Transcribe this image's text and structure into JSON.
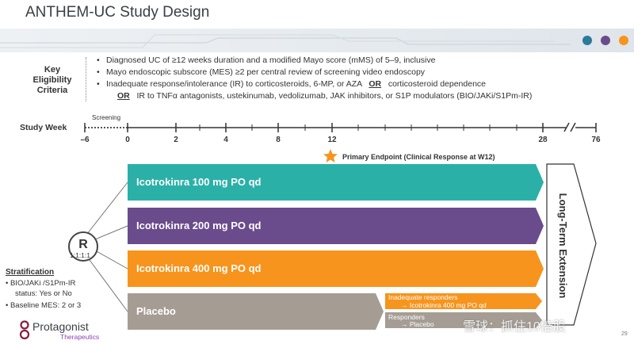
{
  "title": "ANTHEM-UC Study Design",
  "colors": {
    "teal": "#2bb0a8",
    "purple": "#6a4c8c",
    "orange": "#f7941d",
    "gray": "#a59d94",
    "dot_teal": "#2b7a9b",
    "dot_purple": "#6a4c8c",
    "dot_orange": "#f7941d"
  },
  "key_criteria": {
    "label_lines": [
      "Key",
      "Eligibility",
      "Criteria"
    ],
    "items": [
      {
        "bullet": "•",
        "text": "Diagnosed UC of ≥12 weeks duration and a modified Mayo score (mMS) of 5–9, inclusive"
      },
      {
        "bullet": "•",
        "text": "Mayo endoscopic subscore (MES) ≥2 per central review of screening video endoscopy"
      },
      {
        "bullet": "•",
        "text": "Inadequate response/intolerance (IR) to corticosteroids, 6-MP, or AZA",
        "or": "OR",
        "text_after": "corticosteroid dependence"
      }
    ],
    "item4": {
      "or": "OR",
      "text": "IR to TNFα antagonists, ustekinumab, vedolizumab, JAK inhibitors, or S1P modulators (BIO/JAKi/S1Pm-IR)"
    }
  },
  "timeline": {
    "label": "Study Week",
    "screening_label": "Screening",
    "ticks": [
      "–6",
      "0",
      "2",
      "4",
      "8",
      "12",
      "28",
      "76"
    ]
  },
  "primary_endpoint": "Primary Endpoint (Clinical Response at W12)",
  "arms": [
    {
      "label": "Icotrokinra 100 mg PO qd"
    },
    {
      "label": "Icotrokinra 200 mg PO qd"
    },
    {
      "label": "Icotrokinra 400 mg PO qd"
    },
    {
      "label": "Placebo"
    }
  ],
  "placebo_sub": {
    "inadequate": {
      "line1": "Inadequate responders",
      "line2": "→ Icotrokinra 400 mg PO qd"
    },
    "responders": {
      "line1": "Responders",
      "line2": "→ Placebo"
    }
  },
  "long_term": "Long-Term Extension",
  "randomization": {
    "symbol": "R",
    "ratio": "1:1:1:1"
  },
  "stratification": {
    "title": "Stratification",
    "items": [
      "BIO/JAKi /S1Pm-IR",
      "status: Yes or No",
      "Baseline MES: 2 or 3"
    ],
    "bullet": "•"
  },
  "logo": {
    "name": "Protagonist",
    "sub": "Therapeutics"
  },
  "page_number": "29",
  "watermark": "雪球：抓住10倍股"
}
